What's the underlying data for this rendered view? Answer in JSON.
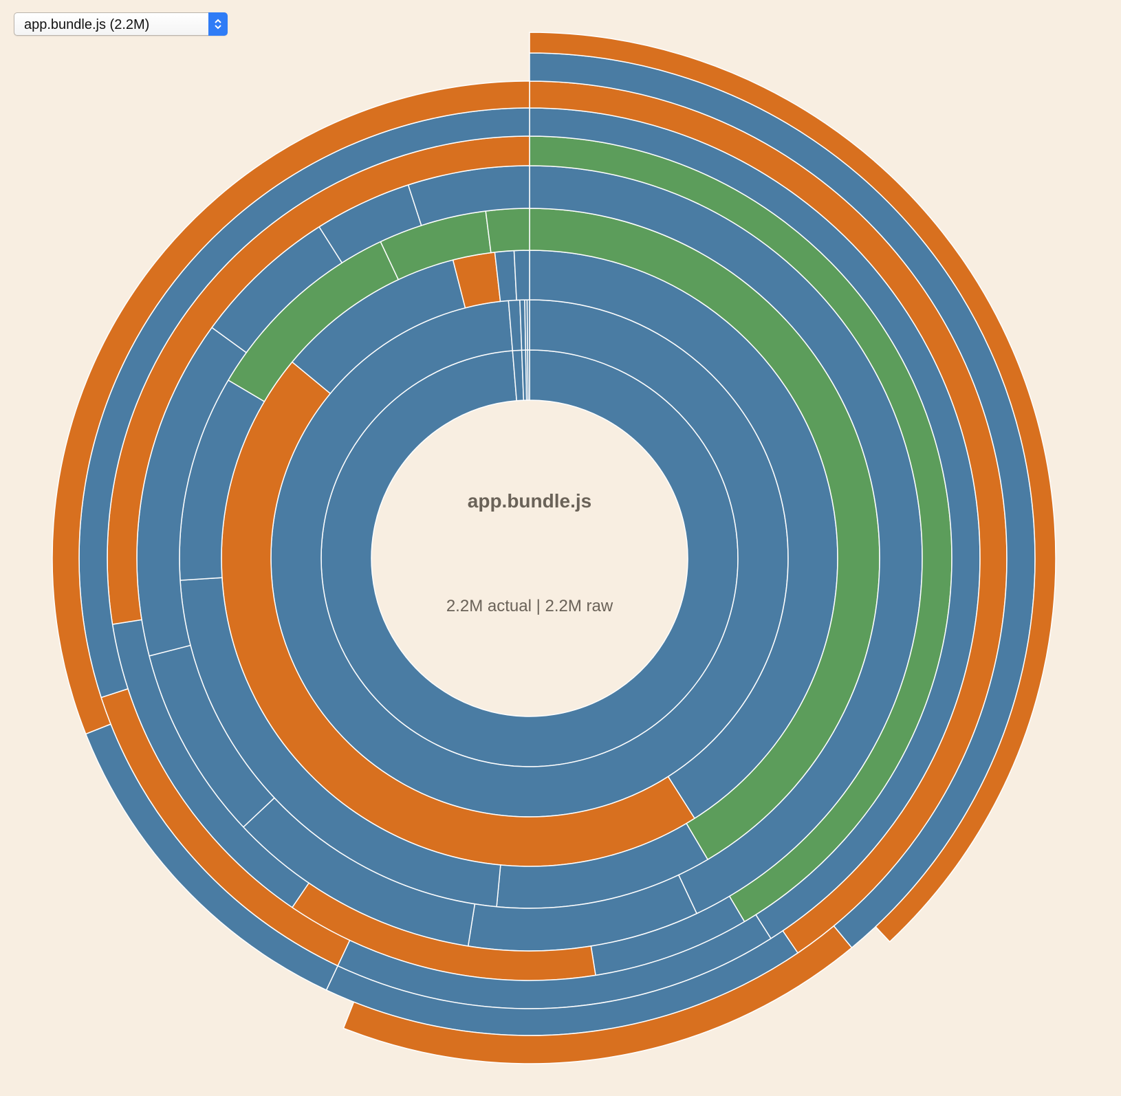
{
  "bundle_selector": {
    "selected": "app.bundle.js (2.2M)",
    "stepper_icon": "chevron-up-down-icon"
  },
  "center": {
    "title": "app.bundle.js",
    "subtitle": "2.2M actual | 2.2M raw"
  },
  "colors": {
    "background": "#f8eee1",
    "blue": "#4a7ca3",
    "orange": "#d8701f",
    "green": "#5c9d5b",
    "separator": "#ffffff"
  },
  "chart_data": {
    "type": "sunburst",
    "root": {
      "name": "app.bundle.js",
      "size": "2.2M"
    },
    "rings": [
      {
        "depth": 1,
        "segments": [
          {
            "color": "blue",
            "share": 0.987
          },
          {
            "color": "blue",
            "share": 0.007
          },
          {
            "color": "blue",
            "share": 0.003
          },
          {
            "color": "blue",
            "share": 0.0015
          },
          {
            "color": "blue",
            "share": 0.0015
          }
        ]
      },
      {
        "depth": 2,
        "segments": [
          {
            "color": "blue",
            "share": 0.987
          },
          {
            "color": "blue",
            "share": 0.007
          },
          {
            "color": "blue",
            "share": 0.003
          },
          {
            "color": "blue",
            "share": 0.0015
          },
          {
            "color": "blue",
            "share": 0.0015
          }
        ]
      },
      {
        "depth": 3,
        "segments": [
          {
            "color": "blue",
            "share": 0.41
          },
          {
            "color": "orange",
            "share": 0.45
          },
          {
            "color": "blue",
            "share": 0.1
          },
          {
            "color": "orange",
            "share": 0.022
          },
          {
            "color": "blue",
            "share": 0.01
          },
          {
            "color": "blue",
            "share": 0.008
          }
        ]
      },
      {
        "depth": 4,
        "segments": [
          {
            "color": "green",
            "share": 0.415
          },
          {
            "color": "blue",
            "share": 0.1
          },
          {
            "color": "blue",
            "share": 0.225
          },
          {
            "color": "blue",
            "share": 0.095
          },
          {
            "color": "green",
            "share": 0.095
          },
          {
            "color": "green",
            "share": 0.05
          },
          {
            "color": "green",
            "share": 0.02
          }
        ]
      },
      {
        "depth": 5,
        "segments": [
          {
            "color": "blue",
            "share": 0.43
          },
          {
            "color": "blue",
            "share": 0.095
          },
          {
            "color": "blue",
            "share": 0.105
          },
          {
            "color": "blue",
            "share": 0.08
          },
          {
            "color": "blue",
            "share": 0.14
          },
          {
            "color": "blue",
            "share": 0.06
          },
          {
            "color": "blue",
            "share": 0.04
          },
          {
            "color": "blue",
            "share": 0.05
          }
        ]
      },
      {
        "depth": 6,
        "segments": [
          {
            "color": "green",
            "share": 0.415
          },
          {
            "color": "blue",
            "share": 0.06
          },
          {
            "color": "orange",
            "share": 0.12
          },
          {
            "color": "blue",
            "share": 0.13
          },
          {
            "color": "orange",
            "share": 0.275
          }
        ]
      },
      {
        "depth": 7,
        "segments": [
          {
            "color": "blue",
            "share": 0.41
          },
          {
            "color": "blue",
            "share": 0.16
          },
          {
            "color": "orange",
            "share": 0.13
          },
          {
            "color": "blue",
            "share": 0.3
          }
        ]
      },
      {
        "depth": 8,
        "segments": [
          {
            "color": "orange",
            "share": 0.405
          },
          {
            "color": "blue",
            "share": 0.165
          },
          {
            "color": "blue",
            "share": 0.12
          },
          {
            "color": "orange",
            "share": 0.31
          }
        ]
      },
      {
        "depth": 9,
        "segments": [
          {
            "color": "blue",
            "share": 0.39
          },
          {
            "color": "orange",
            "share": 0.17
          }
        ]
      },
      {
        "depth": 10,
        "segments": [
          {
            "color": "orange",
            "share": 0.38
          }
        ]
      }
    ]
  }
}
